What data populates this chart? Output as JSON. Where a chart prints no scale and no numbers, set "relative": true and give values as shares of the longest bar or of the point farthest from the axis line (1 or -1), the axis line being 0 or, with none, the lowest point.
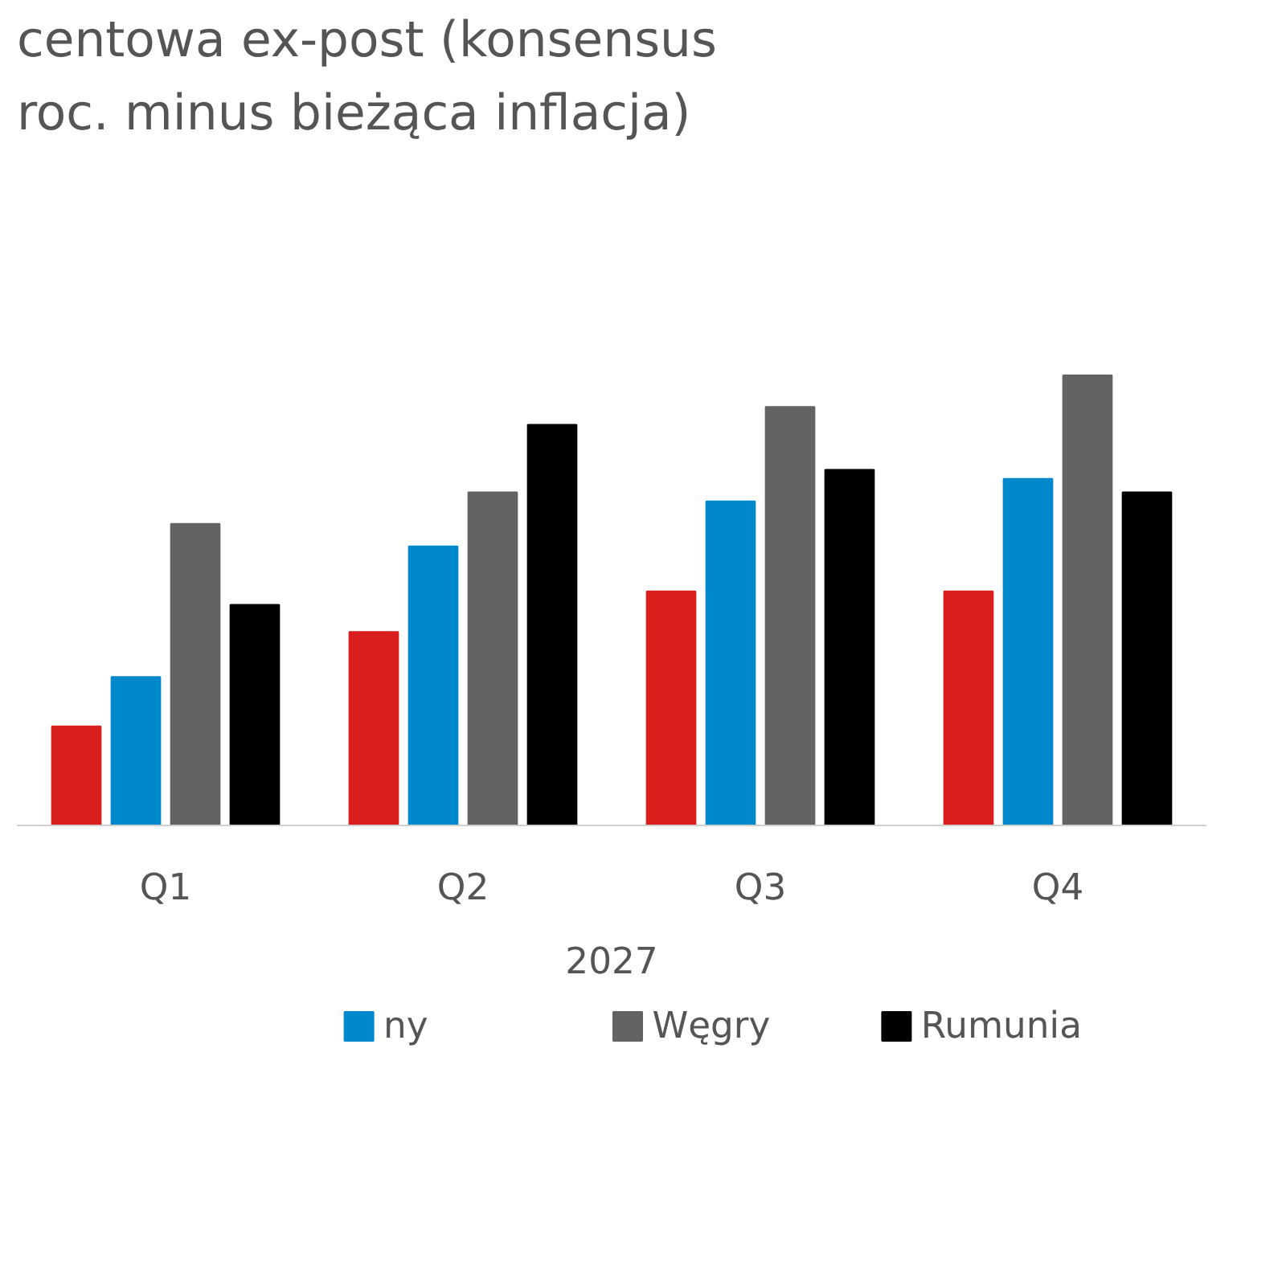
{
  "chart_data": {
    "type": "bar",
    "title": "centowa ex-post (konsensus\nroc. minus bieżąca inflacja)",
    "xlabel": "2027",
    "categories": [
      "Q1",
      "Q2",
      "Q3",
      "Q4"
    ],
    "relative": true,
    "legend": "bottom",
    "series": [
      {
        "color": "#d91e1e",
        "values": [
          0.22,
          0.43,
          0.52,
          0.52
        ]
      },
      {
        "name": "ny",
        "color": "#0088cc",
        "values": [
          0.33,
          0.62,
          0.72,
          0.77
        ]
      },
      {
        "name": "Węgry",
        "color": "#636363",
        "values": [
          0.67,
          0.74,
          0.93,
          1
        ]
      },
      {
        "name": "Rumunia",
        "color": "#000000",
        "values": [
          0.49,
          0.89,
          0.79,
          0.74
        ]
      }
    ]
  }
}
